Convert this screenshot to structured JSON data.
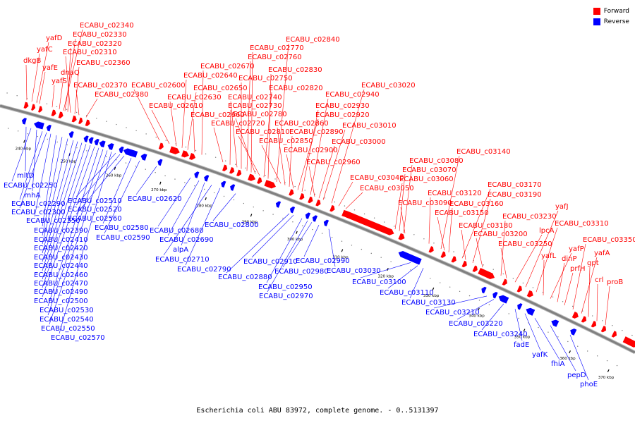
{
  "caption": "Escherichia coli ABU 83972, complete genome. - 0..5131397",
  "legend": {
    "forward": {
      "label": "Forward",
      "color": "#ff0000"
    },
    "reverse": {
      "label": "Reverse",
      "color": "#0000ff"
    }
  },
  "colors": {
    "forward": "#ff0000",
    "reverse": "#0000ff",
    "backbone": "#808080"
  },
  "ticks": [
    "240 kbp",
    "250 kbp",
    "260 kbp",
    "270 kbp",
    "280 kbp",
    "290 kbp",
    "300 kbp",
    "310 kbp",
    "320 kbp",
    "330 kbp",
    "340 kbp",
    "350 kbp",
    "360 kbp",
    "370 kbp"
  ],
  "forward_labels": [
    "dkgB",
    "yafC",
    "yafD",
    "yafE",
    "yafS",
    "dnaQ",
    "ECABU_c02340",
    "ECABU_c02330",
    "ECABU_c02320",
    "ECABU_c02310",
    "ECABU_c02360",
    "ECABU_c02370",
    "ECABU_c02380",
    "ECABU_c02600",
    "ECABU_c02610",
    "ECABU_c02630",
    "ECABU_c02640",
    "ECABU_c02650",
    "ECABU_c02660",
    "ECABU_c02670",
    "ECABU_c02720",
    "ECABU_c02730",
    "ECABU_c02740",
    "ECABU_c02750",
    "ECABU_c02760",
    "ECABU_c02770",
    "ECABU_c02780",
    "ECABU_c02810",
    "ECABU_c02820",
    "ECABU_c02830",
    "ECABU_c02840",
    "ECABU_c02850",
    "ECABU_c02860",
    "ECABU_c02890",
    "ECABU_c02900",
    "ECABU_c02920",
    "ECABU_c02930",
    "ECABU_c02940",
    "ECABU_c02960",
    "ECABU_c03000",
    "ECABU_c03010",
    "ECABU_c03020",
    "ECABU_c03040",
    "ECABU_c03050",
    "ECABU_c03060",
    "ECABU_c03070",
    "ECABU_c03080",
    "ECABU_c03090",
    "ECABU_c03120",
    "ECABU_c03140",
    "ECABU_c03150",
    "ECABU_c03160",
    "ECABU_c03170",
    "ECABU_c03180",
    "ECABU_c03190",
    "ECABU_c03200",
    "ECABU_c03230",
    "ECABU_c03250",
    "lpcA",
    "yafJ",
    "ECABU_c03310",
    "yafL",
    "yafP",
    "dinP",
    "prfH",
    "ECABU_c03350",
    "yafA",
    "gpt",
    "crl",
    "proB"
  ],
  "reverse_labels": [
    "mltD",
    "ECABU_c02250",
    "rnhA",
    "ECABU_c02290",
    "ECABU_c02300",
    "ECABU_c02350",
    "ECABU_c02390",
    "ECABU_c02410",
    "ECABU_c02420",
    "ECABU_c02430",
    "ECABU_c02440",
    "ECABU_c02460",
    "ECABU_c02470",
    "ECABU_c02490",
    "ECABU_c02500",
    "ECABU_c02530",
    "ECABU_c02540",
    "ECABU_c02550",
    "ECABU_c02570",
    "ECABU_c02510",
    "ECABU_c02520",
    "ECABU_c02560",
    "ECABU_c02580",
    "ECABU_c02590",
    "ECABU_c02620",
    "ECABU_c02680",
    "ECABU_c02690",
    "alpA",
    "ECABU_c02710",
    "ECABU_c02790",
    "ECABU_c02800",
    "ECABU_c02880",
    "ECABU_c02910",
    "ECABU_c02950",
    "ECABU_c02970",
    "ECABU_c02980",
    "ECABU_c02990",
    "ECABU_c03030",
    "ECABU_c03100",
    "ECABU_c03110",
    "ECABU_c03130",
    "ECABU_c03210",
    "ECABU_c03220",
    "ECABU_c03240",
    "fadE",
    "yafK",
    "fhiA",
    "pepD",
    "phoE"
  ]
}
